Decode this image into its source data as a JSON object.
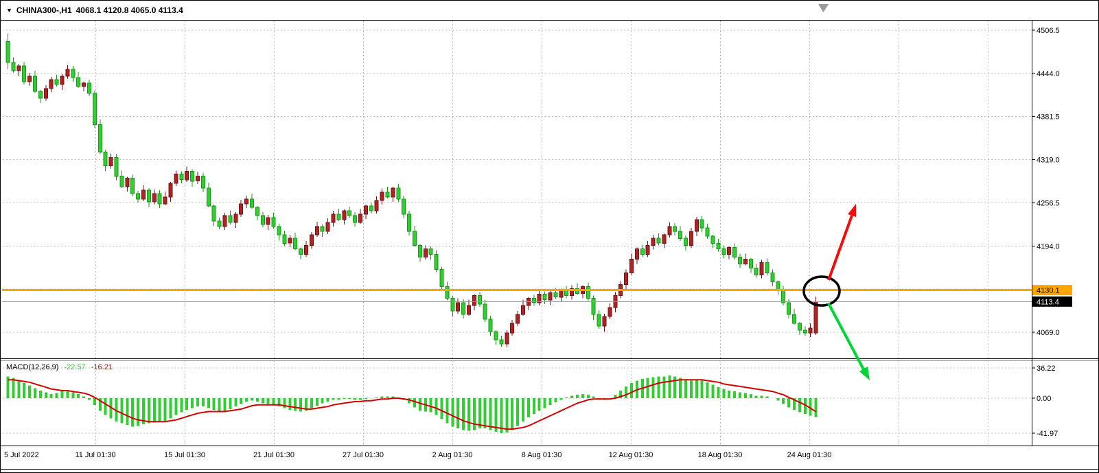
{
  "header": {
    "dropdown_icon": "▼",
    "symbol": "CHINA300-,H1",
    "ohlc": "4068.1 4120.8 4065.0 4113.4"
  },
  "macd_panel": {
    "label": "MACD(12,26,9)",
    "main_value": "-22.57",
    "signal_value": "-16.21"
  },
  "price_tags": {
    "trend_line": "4130.1",
    "bid": "4113.4"
  },
  "colors": {
    "bull_body": "#b22222",
    "bull_border": "#6d1414",
    "bear_body": "#32cd32",
    "bear_border": "#179917",
    "histogram": "#32cd32",
    "signal_line": "#d40000",
    "hline": "#ffa500",
    "hline_tag_bg": "#ffa500",
    "bid_tag_bg": "#000000",
    "bid_tag_text": "#ffffff",
    "grid": "#bdbdbd",
    "annotation_circle": "#000000",
    "annotation_up": "#f40b0b",
    "annotation_down": "#00d636",
    "shift_marker": "#999999"
  },
  "chart_data": {
    "type": "candlestick",
    "title": "CHINA300-,H1",
    "symbol": "CHINA300-",
    "timeframe": "H1",
    "current_ohlc": {
      "open": 4068.1,
      "high": 4120.8,
      "low": 4065.0,
      "close": 4113.4
    },
    "horizontal_line_price": 4130.1,
    "bid_price": 4113.4,
    "y_axis": {
      "gridlines": [
        4506.5,
        4444.0,
        4381.5,
        4319.0,
        4256.5,
        4194.0,
        4131.5,
        4069.0
      ],
      "labels": [
        "4506.5",
        "4444.0",
        "4381.5",
        "4319.0",
        "4256.5",
        "4194.0",
        null,
        "4069.0"
      ],
      "range": [
        4030,
        4521
      ]
    },
    "x_axis": {
      "labels": [
        "5 Jul 2022",
        "11 Jul 01:30",
        "15 Jul 01:30",
        "21 Jul 01:30",
        "27 Jul 01:30",
        "2 Aug 01:30",
        "8 Aug 01:30",
        "12 Aug 01:30",
        "18 Aug 01:30",
        "24 Aug 01:30"
      ]
    },
    "candles_ohlc": [
      [
        4490,
        4502,
        4450,
        4460
      ],
      [
        4460,
        4467,
        4445,
        4448
      ],
      [
        4448,
        4458,
        4440,
        4455
      ],
      [
        4455,
        4461,
        4428,
        4432
      ],
      [
        4432,
        4445,
        4426,
        4440
      ],
      [
        4440,
        4448,
        4416,
        4418
      ],
      [
        4418,
        4420,
        4401,
        4408
      ],
      [
        4408,
        4427,
        4404,
        4422
      ],
      [
        4422,
        4439,
        4417,
        4435
      ],
      [
        4435,
        4442,
        4425,
        4428
      ],
      [
        4428,
        4443,
        4420,
        4440
      ],
      [
        4440,
        4456,
        4436,
        4450
      ],
      [
        4450,
        4455,
        4432,
        4438
      ],
      [
        4438,
        4446,
        4423,
        4425
      ],
      [
        4425,
        4432,
        4418,
        4430
      ],
      [
        4430,
        4435,
        4411,
        4415
      ],
      [
        4415,
        4419,
        4365,
        4370
      ],
      [
        4370,
        4377,
        4327,
        4330
      ],
      [
        4330,
        4333,
        4302,
        4310
      ],
      [
        4310,
        4328,
        4306,
        4322
      ],
      [
        4322,
        4327,
        4289,
        4295
      ],
      [
        4295,
        4303,
        4278,
        4280
      ],
      [
        4280,
        4294,
        4273,
        4292
      ],
      [
        4292,
        4297,
        4266,
        4270
      ],
      [
        4270,
        4274,
        4257,
        4262
      ],
      [
        4262,
        4282,
        4259,
        4275
      ],
      [
        4275,
        4278,
        4250,
        4258
      ],
      [
        4258,
        4276,
        4254,
        4270
      ],
      [
        4270,
        4275,
        4249,
        4255
      ],
      [
        4255,
        4273,
        4253,
        4265
      ],
      [
        4265,
        4287,
        4258,
        4285
      ],
      [
        4285,
        4303,
        4281,
        4298
      ],
      [
        4298,
        4302,
        4285,
        4290
      ],
      [
        4290,
        4309,
        4287,
        4302
      ],
      [
        4302,
        4305,
        4280,
        4288
      ],
      [
        4288,
        4301,
        4284,
        4295
      ],
      [
        4295,
        4300,
        4272,
        4278
      ],
      [
        4278,
        4286,
        4250,
        4252
      ],
      [
        4252,
        4254,
        4223,
        4230
      ],
      [
        4230,
        4235,
        4218,
        4222
      ],
      [
        4222,
        4242,
        4217,
        4238
      ],
      [
        4238,
        4245,
        4225,
        4228
      ],
      [
        4228,
        4243,
        4220,
        4240
      ],
      [
        4240,
        4261,
        4236,
        4255
      ],
      [
        4255,
        4267,
        4249,
        4262
      ],
      [
        4262,
        4270,
        4248,
        4250
      ],
      [
        4250,
        4252,
        4231,
        4238
      ],
      [
        4238,
        4243,
        4221,
        4225
      ],
      [
        4225,
        4239,
        4217,
        4235
      ],
      [
        4235,
        4242,
        4219,
        4222
      ],
      [
        4222,
        4226,
        4202,
        4210
      ],
      [
        4210,
        4216,
        4194,
        4198
      ],
      [
        4198,
        4210,
        4192,
        4205
      ],
      [
        4205,
        4213,
        4188,
        4190
      ],
      [
        4190,
        4192,
        4175,
        4182
      ],
      [
        4182,
        4201,
        4178,
        4195
      ],
      [
        4195,
        4214,
        4190,
        4210
      ],
      [
        4210,
        4229,
        4207,
        4222
      ],
      [
        4222,
        4225,
        4207,
        4215
      ],
      [
        4215,
        4234,
        4211,
        4228
      ],
      [
        4228,
        4245,
        4222,
        4240
      ],
      [
        4240,
        4248,
        4230,
        4232
      ],
      [
        4232,
        4247,
        4225,
        4245
      ],
      [
        4245,
        4251,
        4234,
        4238
      ],
      [
        4238,
        4243,
        4222,
        4228
      ],
      [
        4228,
        4248,
        4226,
        4240
      ],
      [
        4240,
        4254,
        4233,
        4252
      ],
      [
        4252,
        4257,
        4241,
        4245
      ],
      [
        4245,
        4266,
        4241,
        4260
      ],
      [
        4260,
        4277,
        4254,
        4272
      ],
      [
        4272,
        4280,
        4263,
        4265
      ],
      [
        4265,
        4280,
        4258,
        4278
      ],
      [
        4278,
        4284,
        4258,
        4262
      ],
      [
        4262,
        4267,
        4234,
        4240
      ],
      [
        4240,
        4245,
        4209,
        4215
      ],
      [
        4215,
        4223,
        4193,
        4195
      ],
      [
        4195,
        4197,
        4171,
        4178
      ],
      [
        4178,
        4195,
        4174,
        4190
      ],
      [
        4190,
        4194,
        4174,
        4182
      ],
      [
        4182,
        4188,
        4156,
        4160
      ],
      [
        4160,
        4164,
        4130,
        4135
      ],
      [
        4135,
        4142,
        4115,
        4118
      ],
      [
        4118,
        4121,
        4092,
        4100
      ],
      [
        4100,
        4118,
        4096,
        4112
      ],
      [
        4112,
        4117,
        4089,
        4095
      ],
      [
        4095,
        4116,
        4093,
        4108
      ],
      [
        4108,
        4124,
        4101,
        4122
      ],
      [
        4122,
        4127,
        4106,
        4110
      ],
      [
        4110,
        4116,
        4084,
        4088
      ],
      [
        4088,
        4093,
        4064,
        4070
      ],
      [
        4070,
        4072,
        4051,
        4058
      ],
      [
        4058,
        4064,
        4048,
        4052
      ],
      [
        4052,
        4072,
        4047,
        4068
      ],
      [
        4068,
        4087,
        4064,
        4082
      ],
      [
        4082,
        4100,
        4078,
        4095
      ],
      [
        4095,
        4116,
        4093,
        4108
      ],
      [
        4108,
        4120,
        4101,
        4118
      ],
      [
        4118,
        4123,
        4108,
        4112
      ],
      [
        4112,
        4130,
        4108,
        4124
      ],
      [
        4124,
        4128,
        4110,
        4116
      ],
      [
        4116,
        4130,
        4109,
        4126
      ],
      [
        4126,
        4133,
        4117,
        4120
      ],
      [
        4120,
        4132,
        4113,
        4130
      ],
      [
        4130,
        4136,
        4118,
        4122
      ],
      [
        4122,
        4137,
        4116,
        4132
      ],
      [
        4132,
        4140,
        4123,
        4125
      ],
      [
        4125,
        4137,
        4118,
        4135
      ],
      [
        4135,
        4141,
        4114,
        4118
      ],
      [
        4118,
        4122,
        4087,
        4095
      ],
      [
        4095,
        4101,
        4074,
        4078
      ],
      [
        4078,
        4096,
        4070,
        4092
      ],
      [
        4092,
        4111,
        4088,
        4105
      ],
      [
        4105,
        4127,
        4098,
        4122
      ],
      [
        4122,
        4143,
        4118,
        4138
      ],
      [
        4138,
        4160,
        4131,
        4155
      ],
      [
        4155,
        4183,
        4152,
        4175
      ],
      [
        4175,
        4192,
        4168,
        4190
      ],
      [
        4190,
        4196,
        4178,
        4182
      ],
      [
        4182,
        4201,
        4178,
        4195
      ],
      [
        4195,
        4210,
        4189,
        4205
      ],
      [
        4205,
        4212,
        4195,
        4198
      ],
      [
        4198,
        4212,
        4191,
        4210
      ],
      [
        4210,
        4228,
        4206,
        4222
      ],
      [
        4222,
        4227,
        4209,
        4215
      ],
      [
        4215,
        4223,
        4201,
        4205
      ],
      [
        4205,
        4209,
        4187,
        4195
      ],
      [
        4195,
        4220,
        4191,
        4215
      ],
      [
        4215,
        4236,
        4208,
        4232
      ],
      [
        4232,
        4237,
        4214,
        4220
      ],
      [
        4220,
        4226,
        4204,
        4208
      ],
      [
        4208,
        4210,
        4191,
        4198
      ],
      [
        4198,
        4204,
        4186,
        4190
      ],
      [
        4190,
        4195,
        4176,
        4182
      ],
      [
        4182,
        4194,
        4175,
        4192
      ],
      [
        4192,
        4198,
        4174,
        4178
      ],
      [
        4178,
        4183,
        4162,
        4168
      ],
      [
        4168,
        4183,
        4166,
        4175
      ],
      [
        4175,
        4177,
        4155,
        4162
      ],
      [
        4162,
        4168,
        4148,
        4152
      ],
      [
        4152,
        4174,
        4147,
        4170
      ],
      [
        4170,
        4176,
        4151,
        4155
      ],
      [
        4155,
        4160,
        4136,
        4142
      ],
      [
        4142,
        4144,
        4123,
        4130
      ],
      [
        4130,
        4136,
        4108,
        4112
      ],
      [
        4112,
        4117,
        4089,
        4095
      ],
      [
        4095,
        4103,
        4080,
        4082
      ],
      [
        4082,
        4084,
        4065,
        4072
      ],
      [
        4072,
        4078,
        4064,
        4068
      ],
      [
        4068,
        4082,
        4062,
        4075
      ],
      [
        4068.1,
        4120.8,
        4065.0,
        4113.4
      ]
    ],
    "indicator": {
      "type": "MACD",
      "params": "12,26,9",
      "y_gridlines": [
        36.22,
        0,
        -41.97
      ],
      "y_labels": [
        "36.22",
        "0.00",
        "-41.97"
      ],
      "histogram": [
        26,
        24,
        21,
        18,
        15,
        12,
        9,
        7,
        5,
        6,
        8,
        9,
        7,
        5,
        2,
        -2,
        -8,
        -15,
        -20,
        -24,
        -28,
        -30,
        -32,
        -34,
        -33,
        -31,
        -30,
        -29,
        -28,
        -27,
        -24,
        -20,
        -17,
        -14,
        -12,
        -10,
        -10,
        -12,
        -14,
        -16,
        -15,
        -13,
        -10,
        -7,
        -4,
        -3,
        -4,
        -6,
        -7,
        -8,
        -10,
        -12,
        -14,
        -15,
        -16,
        -15,
        -12,
        -9,
        -6,
        -4,
        -2,
        -2,
        -1,
        -1,
        -2,
        -2,
        -1,
        0,
        1,
        2,
        2,
        2,
        1,
        -2,
        -6,
        -11,
        -15,
        -16,
        -17,
        -20,
        -25,
        -30,
        -34,
        -36,
        -38,
        -39,
        -38,
        -36,
        -36,
        -38,
        -40,
        -42,
        -41,
        -38,
        -33,
        -28,
        -23,
        -19,
        -15,
        -12,
        -8,
        -5,
        -2,
        1,
        3,
        4,
        5,
        4,
        2,
        -1,
        -2,
        0,
        4,
        9,
        14,
        18,
        21,
        23,
        24,
        25,
        26,
        26,
        27,
        26,
        24,
        22,
        21,
        22,
        21,
        19,
        16,
        13,
        11,
        9,
        8,
        7,
        6,
        5,
        3,
        3,
        2,
        0,
        -3,
        -7,
        -11,
        -14,
        -17,
        -19,
        -21,
        -22.57
      ],
      "signal": [
        22,
        22,
        21,
        20,
        19,
        17,
        15,
        13,
        11,
        10,
        9,
        9,
        8,
        7,
        6,
        4,
        1,
        -3,
        -7,
        -11,
        -15,
        -18,
        -21,
        -24,
        -26,
        -27,
        -28,
        -28,
        -28,
        -28,
        -27,
        -26,
        -24,
        -22,
        -20,
        -18,
        -17,
        -16,
        -16,
        -16,
        -16,
        -15,
        -14,
        -13,
        -11,
        -9,
        -8,
        -8,
        -8,
        -8,
        -8,
        -9,
        -10,
        -11,
        -12,
        -13,
        -13,
        -12,
        -11,
        -10,
        -8,
        -7,
        -6,
        -5,
        -4,
        -4,
        -3,
        -3,
        -2,
        -1,
        -1,
        0,
        0,
        -1,
        -2,
        -4,
        -6,
        -8,
        -10,
        -12,
        -15,
        -18,
        -21,
        -24,
        -27,
        -29,
        -31,
        -32,
        -33,
        -34,
        -35,
        -36,
        -37,
        -37,
        -36,
        -35,
        -33,
        -30,
        -27,
        -24,
        -21,
        -18,
        -15,
        -12,
        -9,
        -6,
        -4,
        -2,
        -1,
        -1,
        -1,
        -1,
        0,
        2,
        4,
        7,
        10,
        12,
        14,
        16,
        18,
        19,
        20,
        21,
        22,
        22,
        22,
        22,
        22,
        21,
        20,
        19,
        17,
        16,
        15,
        14,
        13,
        12,
        11,
        10,
        9,
        8,
        6,
        4,
        1,
        -2,
        -5,
        -8,
        -12,
        -16.21
      ]
    },
    "annotations": [
      {
        "kind": "circle",
        "color": "#000000"
      },
      {
        "kind": "arrow-up",
        "color": "#f40b0b"
      },
      {
        "kind": "arrow-down",
        "color": "#00d636"
      }
    ]
  }
}
